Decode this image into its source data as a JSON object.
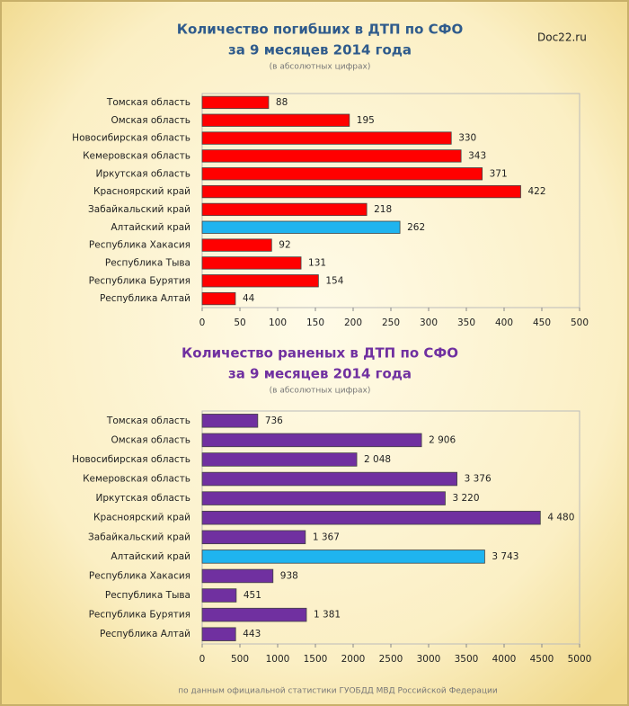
{
  "watermark": "Doc22.ru",
  "source": "по данным официальной статистики ГУОБДД МВД Российской Федерации",
  "chart_data": [
    {
      "type": "barh",
      "title": "Количество погибших в ДТП по СФО",
      "title_line2": "за 9 месяцев 2014 года",
      "subtitle": "(в абсолютных цифрах)",
      "title_color": "#2f5b8c",
      "categories": [
        "Томская область",
        "Омская область",
        "Новосибирская область",
        "Кемеровская область",
        "Иркутская область",
        "Красноярский край",
        "Забайкальский край",
        "Алтайский край",
        "Республика Хакасия",
        "Республика Тыва",
        "Республика Бурятия",
        "Республика Алтай"
      ],
      "values": [
        88,
        195,
        330,
        343,
        371,
        422,
        218,
        262,
        92,
        131,
        154,
        44
      ],
      "colors": [
        "#ff0000",
        "#ff0000",
        "#ff0000",
        "#ff0000",
        "#ff0000",
        "#ff0000",
        "#ff0000",
        "#1fb4ef",
        "#ff0000",
        "#ff0000",
        "#ff0000",
        "#ff0000"
      ],
      "xlim": [
        0,
        500
      ],
      "xticks": [
        0,
        50,
        100,
        150,
        200,
        250,
        300,
        350,
        400,
        450,
        500
      ],
      "grid": false
    },
    {
      "type": "barh",
      "title": "Количество раненых в ДТП по СФО",
      "title_line2": "за 9 месяцев 2014 года",
      "subtitle": "(в абсолютных цифрах)",
      "title_color": "#7030a0",
      "categories": [
        "Томская область",
        "Омская область",
        "Новосибирская область",
        "Кемеровская область",
        "Иркутская область",
        "Красноярский край",
        "Забайкальский край",
        "Алтайский край",
        "Республика Хакасия",
        "Республика Тыва",
        "Республика Бурятия",
        "Республика Алтай"
      ],
      "values": [
        736,
        2906,
        2048,
        3376,
        3220,
        4480,
        1367,
        3743,
        938,
        451,
        1381,
        443
      ],
      "value_labels": [
        "736",
        "2 906",
        "2 048",
        "3 376",
        "3 220",
        "4 480",
        "1 367",
        "3 743",
        "938",
        "451",
        "1 381",
        "443"
      ],
      "colors": [
        "#7030a0",
        "#7030a0",
        "#7030a0",
        "#7030a0",
        "#7030a0",
        "#7030a0",
        "#7030a0",
        "#1fb4ef",
        "#7030a0",
        "#7030a0",
        "#7030a0",
        "#7030a0"
      ],
      "xlim": [
        0,
        5000
      ],
      "xticks": [
        0,
        500,
        1000,
        1500,
        2000,
        2500,
        3000,
        3500,
        4000,
        4500,
        5000
      ],
      "grid": false
    }
  ]
}
